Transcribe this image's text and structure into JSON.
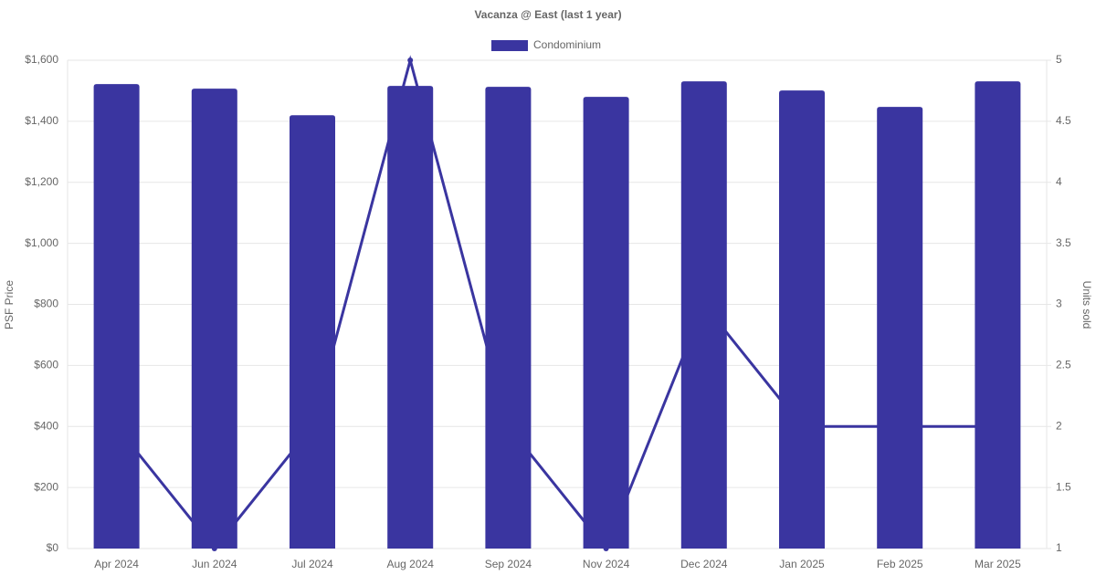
{
  "chart_data": {
    "type": "bar",
    "title": "Vacanza @ East (last 1 year)",
    "categories": [
      "Apr 2024",
      "Jun 2024",
      "Jul 2024",
      "Aug 2024",
      "Sep 2024",
      "Nov 2024",
      "Dec 2024",
      "Jan 2025",
      "Feb 2025",
      "Mar 2025"
    ],
    "series": [
      {
        "name": "Condominium",
        "type": "bar",
        "color": "#3a35a0",
        "values": [
          1522,
          1507,
          1420,
          1516,
          1513,
          1480,
          1531,
          1501,
          1447,
          1531
        ]
      },
      {
        "type": "line",
        "axis": "y2",
        "color": "#3a35a0",
        "values": [
          2,
          1,
          2,
          5,
          2,
          1,
          3,
          2,
          2,
          2
        ]
      }
    ],
    "ylabel": "PSF Price",
    "y2label": "Units sold",
    "ylim": [
      0,
      1600
    ],
    "yticks": [
      {
        "value": 0,
        "label": "$0"
      },
      {
        "value": 200,
        "label": "$200"
      },
      {
        "value": 400,
        "label": "$400"
      },
      {
        "value": 600,
        "label": "$600"
      },
      {
        "value": 800,
        "label": "$800"
      },
      {
        "value": 1000,
        "label": "$1,000"
      },
      {
        "value": 1200,
        "label": "$1,200"
      },
      {
        "value": 1400,
        "label": "$1,400"
      },
      {
        "value": 1600,
        "label": "$1,600"
      }
    ],
    "y2lim": [
      1,
      5
    ],
    "y2ticks": [
      1,
      1.5,
      2,
      2.5,
      3,
      3.5,
      4,
      4.5,
      5
    ],
    "grid": true,
    "legend": "top"
  }
}
